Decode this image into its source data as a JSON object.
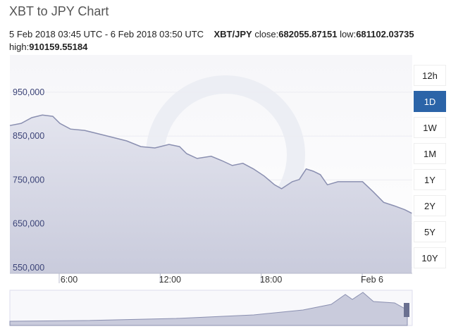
{
  "header": {
    "title": "XBT to JPY Chart",
    "range": "5 Feb 2018 03:45 UTC - 6 Feb 2018 03:50 UTC",
    "pair": "XBT/JPY",
    "close_label": "close:",
    "close": "682055.87151",
    "low_label": "low:",
    "low": "681102.03735",
    "high_label": "high:",
    "high": "910159.55184"
  },
  "chart_data": {
    "type": "line",
    "color": "#8a8fb0",
    "x": [
      3.07,
      3.74,
      4.37,
      5.0,
      5.62,
      6.04,
      6.67,
      7.51,
      8.34,
      9.18,
      10.01,
      10.85,
      11.69,
      12.52,
      13.15,
      13.57,
      14.19,
      15.03,
      15.66,
      16.28,
      16.91,
      17.54,
      18.17,
      18.79,
      19.21,
      19.84,
      20.26,
      20.67,
      21.09,
      21.51,
      21.93,
      22.56,
      23.39,
      24.02,
      24.65,
      25.27,
      25.9,
      26.53,
      26.94
    ],
    "values": [
      874000,
      879000,
      892000,
      898000,
      895000,
      879000,
      866000,
      863000,
      855000,
      847000,
      839000,
      826000,
      823000,
      831000,
      826000,
      810000,
      799000,
      804000,
      794000,
      783000,
      788000,
      775000,
      759000,
      739000,
      730000,
      746000,
      751000,
      775000,
      770000,
      762000,
      739000,
      746000,
      746000,
      746000,
      723000,
      699000,
      691000,
      682000,
      674000
    ],
    "xlim": [
      3.07,
      26.97
    ],
    "xticks": [
      {
        "value": 6,
        "label": "6:00"
      },
      {
        "value": 12,
        "label": "12:00"
      },
      {
        "value": 18,
        "label": "18:00"
      },
      {
        "value": 24,
        "label": "Feb 6"
      }
    ],
    "ylim": [
      537000,
      1035000
    ],
    "yticks": [
      {
        "value": 550000,
        "label": "550,000"
      },
      {
        "value": 650000,
        "label": "650,000"
      },
      {
        "value": 750000,
        "label": "750,000"
      },
      {
        "value": 850000,
        "label": "850,000"
      },
      {
        "value": 950000,
        "label": "950,000"
      }
    ]
  },
  "buttons": [
    "12h",
    "1D",
    "1W",
    "1M",
    "1Y",
    "2Y",
    "5Y",
    "10Y"
  ],
  "selected_button": 1
}
